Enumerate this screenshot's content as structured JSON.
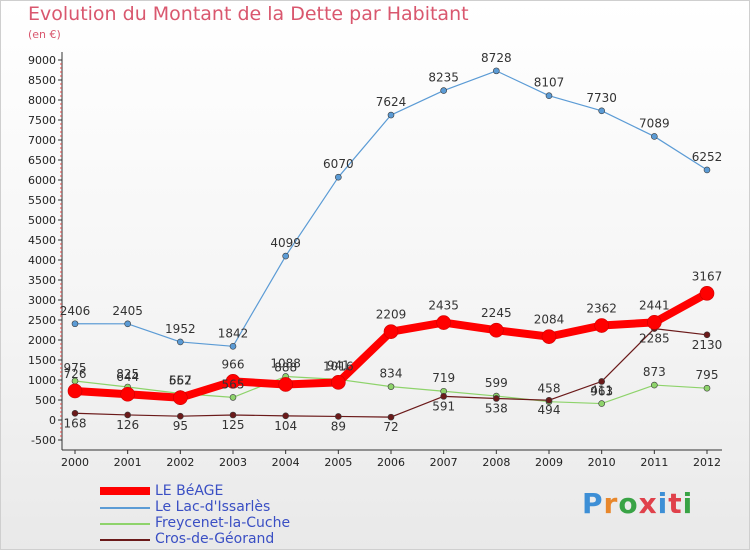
{
  "title": "Evolution du Montant de la Dette par Habitant",
  "unit": "(en €)",
  "brand": {
    "text": "Proxiti",
    "colors": [
      "#3d8fd6",
      "#e8872b",
      "#39a345",
      "#e0414b",
      "#3d8fd6",
      "#e0414b",
      "#39a345"
    ]
  },
  "chart_data": {
    "type": "line",
    "x": [
      "2000",
      "2001",
      "2002",
      "2003",
      "2004",
      "2005",
      "2006",
      "2007",
      "2008",
      "2009",
      "2010",
      "2011",
      "2012"
    ],
    "ylim": [
      -500,
      9000
    ],
    "yticks": [
      "-500",
      "0",
      "500",
      "1000",
      "1500",
      "2000",
      "2500",
      "3000",
      "3500",
      "4000",
      "4500",
      "5000",
      "5500",
      "6000",
      "6500",
      "7000",
      "7500",
      "8000",
      "8500",
      "9000"
    ],
    "grid": false,
    "legend": "bottom-left",
    "series": [
      {
        "name": "LE BéAGE",
        "color": "#ff0000",
        "width": 8,
        "marker": 7,
        "values": [
          726,
          644,
          557,
          966,
          888,
          941,
          2209,
          2435,
          2245,
          2084,
          2362,
          2441,
          3167
        ],
        "labels": [
          "726",
          "644",
          "557",
          "966",
          "888",
          "941",
          "2209",
          "2435",
          "2245",
          "2084",
          "2362",
          "2441",
          "3167"
        ]
      },
      {
        "name": "Le Lac-d'Issarlès",
        "color": "#5b9bd5",
        "width": 1.2,
        "marker": 3,
        "values": [
          2406,
          2405,
          1952,
          1842,
          4099,
          6070,
          7624,
          8235,
          8728,
          8107,
          7730,
          7089,
          6252
        ],
        "labels": [
          "2406",
          "2405",
          "1952",
          "1842",
          "4099",
          "6070",
          "7624",
          "8235",
          "8728",
          "8107",
          "7730",
          "7089",
          "6252"
        ]
      },
      {
        "name": "Freycenet-la-Cuche",
        "color": "#8ed36b",
        "width": 1.2,
        "marker": 3,
        "values": [
          975,
          825,
          662,
          565,
          1088,
          1016,
          834,
          719,
          599,
          458,
          411,
          873,
          795
        ],
        "labels": [
          "975",
          "825",
          "662",
          "565",
          "1088",
          "1016",
          "834",
          "719",
          "599",
          "458",
          "411",
          "873",
          "795"
        ]
      },
      {
        "name": "Cros-de-Géorand",
        "color": "#6b1a1a",
        "width": 1.2,
        "marker": 3,
        "values": [
          168,
          126,
          95,
          125,
          104,
          89,
          72,
          591,
          538,
          494,
          963,
          2285,
          2130
        ],
        "labels": [
          "168",
          "126",
          "95",
          "125",
          "104",
          "89",
          "72",
          "591",
          "538",
          "494",
          "963",
          "2285",
          "2130"
        ]
      }
    ]
  }
}
